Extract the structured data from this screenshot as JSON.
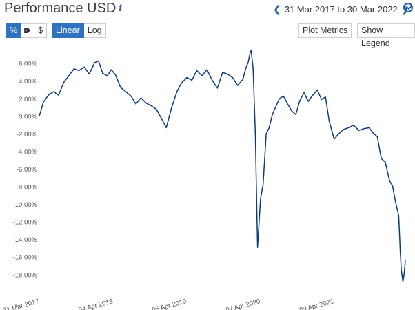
{
  "header": {
    "title": "Performance USD",
    "info_icon": "info-icon",
    "date_range": "31 Mar 2017 to 30 Mar 2022",
    "prev_icon": "chevron-left-icon",
    "next_icon": "chevron-right-icon",
    "download_icon": "download-icon"
  },
  "toolbar": {
    "unit_percent": "%",
    "unit_tag_icon": "tag-icon",
    "unit_dollar": "$",
    "scale_linear": "Linear",
    "scale_log": "Log",
    "plot_metrics": "Plot Metrics",
    "show_legend": "Show Legend"
  },
  "colors": {
    "accent": "#2f73c0",
    "line": "#0b3a7e"
  },
  "chart_data": {
    "type": "line",
    "ylabel": "",
    "xlabel": "",
    "y_ticks": [
      "6.00%",
      "4.00%",
      "2.00%",
      "0.00%",
      "-2.00%",
      "-4.00%",
      "-6.00%",
      "-8.00%",
      "-10.00%",
      "-12.00%",
      "-14.00%",
      "-16.00%",
      "-18.00%"
    ],
    "y_tick_values": [
      6,
      4,
      2,
      0,
      -2,
      -4,
      -6,
      -8,
      -10,
      -12,
      -14,
      -16,
      -18
    ],
    "x_ticks": [
      "31 Mar 2017",
      "04 Apr 2018",
      "05 Apr 2019",
      "07 Apr 2020",
      "09 Apr 2021"
    ],
    "x_tick_values": [
      "2017-03-31",
      "2018-04-04",
      "2019-04-05",
      "2020-04-07",
      "2021-04-09"
    ],
    "xlim": [
      "2017-03-31",
      "2022-03-30"
    ],
    "ylim": [
      -18.8,
      7.5
    ],
    "grid": false,
    "series": [
      {
        "x": [
          "2017-03-31",
          "2017-04-20",
          "2017-05-15",
          "2017-06-10",
          "2017-07-05",
          "2017-08-01",
          "2017-08-25",
          "2017-09-20",
          "2017-10-15",
          "2017-11-10",
          "2017-12-05",
          "2018-01-01",
          "2018-01-20",
          "2018-02-10",
          "2018-03-05",
          "2018-03-25",
          "2018-04-15",
          "2018-05-10",
          "2018-06-05",
          "2018-07-01",
          "2018-07-25",
          "2018-08-20",
          "2018-09-15",
          "2018-10-10",
          "2018-11-05",
          "2018-12-01",
          "2018-12-24",
          "2019-01-20",
          "2019-02-15",
          "2019-03-10",
          "2019-04-05",
          "2019-05-01",
          "2019-05-25",
          "2019-06-20",
          "2019-07-15",
          "2019-08-10",
          "2019-09-05",
          "2019-10-01",
          "2019-10-25",
          "2019-11-20",
          "2019-12-15",
          "2020-01-10",
          "2020-01-25",
          "2020-02-05",
          "2020-02-15",
          "2020-02-20",
          "2020-03-01",
          "2020-03-12",
          "2020-03-23",
          "2020-04-07",
          "2020-04-20",
          "2020-05-05",
          "2020-05-20",
          "2020-06-05",
          "2020-06-20",
          "2020-07-10",
          "2020-07-30",
          "2020-08-20",
          "2020-09-10",
          "2020-09-30",
          "2020-10-20",
          "2020-11-10",
          "2020-11-30",
          "2020-12-20",
          "2021-01-15",
          "2021-02-05",
          "2021-02-25",
          "2021-03-15",
          "2021-04-09",
          "2021-05-01",
          "2021-05-25",
          "2021-06-20",
          "2021-07-15",
          "2021-08-10",
          "2021-09-05",
          "2021-10-01",
          "2021-10-20",
          "2021-11-10",
          "2021-11-30",
          "2021-12-20",
          "2022-01-10",
          "2022-01-25",
          "2022-02-10",
          "2022-02-25",
          "2022-03-05",
          "2022-03-10",
          "2022-03-18",
          "2022-03-24",
          "2022-03-30"
        ],
        "values": [
          0.0,
          1.6,
          2.4,
          2.8,
          2.4,
          3.9,
          4.6,
          5.4,
          5.2,
          5.6,
          4.8,
          6.1,
          6.3,
          4.9,
          4.6,
          5.3,
          4.7,
          3.3,
          2.8,
          2.3,
          1.4,
          2.1,
          1.5,
          1.2,
          0.8,
          -0.3,
          -1.3,
          1.0,
          2.8,
          3.8,
          4.4,
          4.1,
          5.2,
          4.6,
          5.3,
          4.1,
          3.2,
          5.0,
          4.8,
          4.4,
          3.5,
          4.2,
          5.5,
          6.1,
          7.2,
          7.5,
          5.4,
          -2.0,
          -14.9,
          -9.4,
          -7.7,
          -2.0,
          -1.3,
          0.2,
          1.0,
          2.0,
          2.3,
          1.4,
          0.6,
          0.2,
          1.8,
          2.7,
          1.7,
          2.3,
          3.0,
          1.9,
          2.2,
          -0.5,
          -2.6,
          -2.0,
          -1.5,
          -1.3,
          -1.0,
          -1.6,
          -1.4,
          -1.3,
          -1.9,
          -2.3,
          -4.8,
          -5.2,
          -7.3,
          -7.9,
          -9.8,
          -11.3,
          -15.5,
          -17.5,
          -18.8,
          -17.9,
          -16.4
        ]
      }
    ]
  }
}
